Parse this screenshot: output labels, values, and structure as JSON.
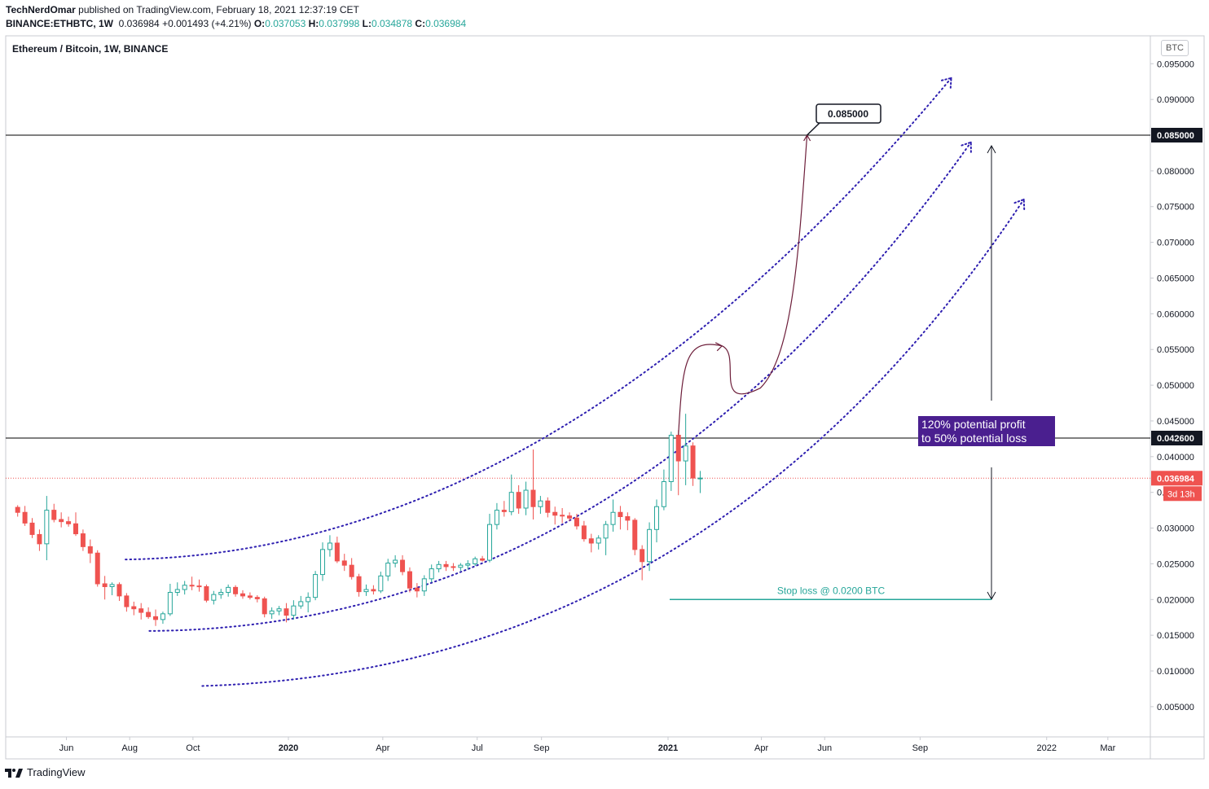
{
  "header": {
    "author": "TechNerdOmar",
    "published_text": "published on TradingView.com, February 18, 2021 12:37:19 CET",
    "symbol": "BINANCE:ETHBTC, 1W",
    "last": "0.036984",
    "change": "+0.001493 (+4.21%)",
    "o_label": "O:",
    "o": "0.037053",
    "h_label": "H:",
    "h": "0.037998",
    "l_label": "L:",
    "l": "0.034878",
    "c_label": "C:",
    "c": "0.036984"
  },
  "legend": {
    "title": "Ethereum / Bitcoin, 1W, BINANCE"
  },
  "currency_button": "BTC",
  "footer": {
    "brand": "TradingView"
  },
  "colors": {
    "up": "#26a69a",
    "down": "#ef5350",
    "channel": "#2e1fb0",
    "path": "#6d1e3a",
    "stop": "#26a69a",
    "annotation_bg": "#4a1f8f"
  },
  "chart_data": {
    "type": "candlestick",
    "title": "Ethereum / Bitcoin, 1W, BINANCE",
    "y_axis": {
      "ticks": [
        "0.095000",
        "0.090000",
        "0.085000",
        "0.080000",
        "0.075000",
        "0.070000",
        "0.065000",
        "0.060000",
        "0.055000",
        "0.050000",
        "0.045000",
        "0.040000",
        "0.035000",
        "0.030000",
        "0.025000",
        "0.020000",
        "0.015000",
        "0.010000",
        "0.005000"
      ],
      "ylim": [
        0.0,
        0.0985
      ],
      "currency": "BTC"
    },
    "x_axis": {
      "ticks": [
        {
          "label": "Jun",
          "date": "2019-06-01",
          "bold": false
        },
        {
          "label": "Aug",
          "date": "2019-08-01",
          "bold": false
        },
        {
          "label": "Oct",
          "date": "2019-10-01",
          "bold": false
        },
        {
          "label": "2020",
          "date": "2020-01-01",
          "bold": true
        },
        {
          "label": "Apr",
          "date": "2020-04-01",
          "bold": false
        },
        {
          "label": "Jul",
          "date": "2020-07-01",
          "bold": false
        },
        {
          "label": "Sep",
          "date": "2020-09-01",
          "bold": false
        },
        {
          "label": "2021",
          "date": "2021-01-01",
          "bold": true
        },
        {
          "label": "Apr",
          "date": "2021-04-01",
          "bold": false
        },
        {
          "label": "Jun",
          "date": "2021-06-01",
          "bold": false
        },
        {
          "label": "Sep",
          "date": "2021-09-01",
          "bold": false
        },
        {
          "label": "2022",
          "date": "2022-01-01",
          "bold": false
        },
        {
          "label": "Mar",
          "date": "2022-03-01",
          "bold": false
        }
      ]
    },
    "candles": [
      {
        "date": "2019-04-15",
        "o": 0.0329,
        "h": 0.0332,
        "l": 0.0316,
        "c": 0.0322
      },
      {
        "date": "2019-04-22",
        "o": 0.0322,
        "h": 0.0331,
        "l": 0.0303,
        "c": 0.0307
      },
      {
        "date": "2019-04-29",
        "o": 0.0307,
        "h": 0.0314,
        "l": 0.0286,
        "c": 0.0291
      },
      {
        "date": "2019-05-06",
        "o": 0.0291,
        "h": 0.0298,
        "l": 0.0268,
        "c": 0.0278
      },
      {
        "date": "2019-05-13",
        "o": 0.0278,
        "h": 0.0345,
        "l": 0.0255,
        "c": 0.0325
      },
      {
        "date": "2019-05-20",
        "o": 0.0325,
        "h": 0.0334,
        "l": 0.0308,
        "c": 0.0312
      },
      {
        "date": "2019-05-27",
        "o": 0.0312,
        "h": 0.0322,
        "l": 0.0301,
        "c": 0.0309
      },
      {
        "date": "2019-06-03",
        "o": 0.0309,
        "h": 0.0316,
        "l": 0.0302,
        "c": 0.0306
      },
      {
        "date": "2019-06-10",
        "o": 0.0306,
        "h": 0.0322,
        "l": 0.0289,
        "c": 0.0292
      },
      {
        "date": "2019-06-17",
        "o": 0.0292,
        "h": 0.0298,
        "l": 0.0268,
        "c": 0.0274
      },
      {
        "date": "2019-06-24",
        "o": 0.0274,
        "h": 0.0284,
        "l": 0.0251,
        "c": 0.0265
      },
      {
        "date": "2019-07-01",
        "o": 0.0265,
        "h": 0.0269,
        "l": 0.0218,
        "c": 0.0222
      },
      {
        "date": "2019-07-08",
        "o": 0.0222,
        "h": 0.0233,
        "l": 0.02,
        "c": 0.0218
      },
      {
        "date": "2019-07-15",
        "o": 0.0218,
        "h": 0.0224,
        "l": 0.0206,
        "c": 0.0221
      },
      {
        "date": "2019-07-22",
        "o": 0.0221,
        "h": 0.0224,
        "l": 0.0198,
        "c": 0.0205
      },
      {
        "date": "2019-07-29",
        "o": 0.0205,
        "h": 0.0209,
        "l": 0.0183,
        "c": 0.019
      },
      {
        "date": "2019-08-05",
        "o": 0.019,
        "h": 0.0197,
        "l": 0.0178,
        "c": 0.0187
      },
      {
        "date": "2019-08-12",
        "o": 0.0187,
        "h": 0.0195,
        "l": 0.0172,
        "c": 0.0182
      },
      {
        "date": "2019-08-19",
        "o": 0.0182,
        "h": 0.0189,
        "l": 0.0173,
        "c": 0.0176
      },
      {
        "date": "2019-08-26",
        "o": 0.0176,
        "h": 0.0186,
        "l": 0.0163,
        "c": 0.0172
      },
      {
        "date": "2019-09-02",
        "o": 0.0172,
        "h": 0.0183,
        "l": 0.0166,
        "c": 0.018
      },
      {
        "date": "2019-09-09",
        "o": 0.018,
        "h": 0.0222,
        "l": 0.0177,
        "c": 0.021
      },
      {
        "date": "2019-09-16",
        "o": 0.021,
        "h": 0.0224,
        "l": 0.0205,
        "c": 0.0214
      },
      {
        "date": "2019-09-23",
        "o": 0.0214,
        "h": 0.0226,
        "l": 0.0207,
        "c": 0.022
      },
      {
        "date": "2019-09-30",
        "o": 0.022,
        "h": 0.0232,
        "l": 0.0213,
        "c": 0.0219
      },
      {
        "date": "2019-10-07",
        "o": 0.0219,
        "h": 0.0228,
        "l": 0.0211,
        "c": 0.0218
      },
      {
        "date": "2019-10-14",
        "o": 0.0218,
        "h": 0.0221,
        "l": 0.0196,
        "c": 0.0199
      },
      {
        "date": "2019-10-21",
        "o": 0.0199,
        "h": 0.0212,
        "l": 0.0193,
        "c": 0.0207
      },
      {
        "date": "2019-10-28",
        "o": 0.0207,
        "h": 0.0215,
        "l": 0.0201,
        "c": 0.021
      },
      {
        "date": "2019-11-04",
        "o": 0.021,
        "h": 0.0221,
        "l": 0.0204,
        "c": 0.0217
      },
      {
        "date": "2019-11-11",
        "o": 0.0217,
        "h": 0.022,
        "l": 0.0204,
        "c": 0.0208
      },
      {
        "date": "2019-11-18",
        "o": 0.0208,
        "h": 0.0213,
        "l": 0.0201,
        "c": 0.0205
      },
      {
        "date": "2019-11-25",
        "o": 0.0205,
        "h": 0.021,
        "l": 0.02,
        "c": 0.0203
      },
      {
        "date": "2019-12-02",
        "o": 0.0203,
        "h": 0.0206,
        "l": 0.0196,
        "c": 0.0201
      },
      {
        "date": "2019-12-09",
        "o": 0.0201,
        "h": 0.0204,
        "l": 0.0175,
        "c": 0.018
      },
      {
        "date": "2019-12-16",
        "o": 0.018,
        "h": 0.0189,
        "l": 0.0173,
        "c": 0.0184
      },
      {
        "date": "2019-12-23",
        "o": 0.0184,
        "h": 0.0191,
        "l": 0.0178,
        "c": 0.0187
      },
      {
        "date": "2019-12-30",
        "o": 0.0187,
        "h": 0.0195,
        "l": 0.0168,
        "c": 0.0178
      },
      {
        "date": "2020-01-06",
        "o": 0.0178,
        "h": 0.0199,
        "l": 0.0172,
        "c": 0.0191
      },
      {
        "date": "2020-01-13",
        "o": 0.0191,
        "h": 0.0205,
        "l": 0.0187,
        "c": 0.0197
      },
      {
        "date": "2020-01-20",
        "o": 0.0197,
        "h": 0.021,
        "l": 0.0182,
        "c": 0.0203
      },
      {
        "date": "2020-01-27",
        "o": 0.0203,
        "h": 0.024,
        "l": 0.0199,
        "c": 0.0235
      },
      {
        "date": "2020-02-03",
        "o": 0.0235,
        "h": 0.028,
        "l": 0.0226,
        "c": 0.027
      },
      {
        "date": "2020-02-10",
        "o": 0.027,
        "h": 0.029,
        "l": 0.026,
        "c": 0.0279
      },
      {
        "date": "2020-02-17",
        "o": 0.0279,
        "h": 0.0288,
        "l": 0.0251,
        "c": 0.0254
      },
      {
        "date": "2020-02-24",
        "o": 0.0254,
        "h": 0.0264,
        "l": 0.024,
        "c": 0.0248
      },
      {
        "date": "2020-03-02",
        "o": 0.0248,
        "h": 0.0258,
        "l": 0.0228,
        "c": 0.0232
      },
      {
        "date": "2020-03-09",
        "o": 0.0232,
        "h": 0.0236,
        "l": 0.0204,
        "c": 0.0211
      },
      {
        "date": "2020-03-16",
        "o": 0.0211,
        "h": 0.0221,
        "l": 0.0205,
        "c": 0.0214
      },
      {
        "date": "2020-03-23",
        "o": 0.0214,
        "h": 0.022,
        "l": 0.0207,
        "c": 0.0212
      },
      {
        "date": "2020-03-30",
        "o": 0.0212,
        "h": 0.0239,
        "l": 0.0209,
        "c": 0.0233
      },
      {
        "date": "2020-04-06",
        "o": 0.0233,
        "h": 0.0257,
        "l": 0.0226,
        "c": 0.0251
      },
      {
        "date": "2020-04-13",
        "o": 0.0251,
        "h": 0.0262,
        "l": 0.0245,
        "c": 0.0255
      },
      {
        "date": "2020-04-20",
        "o": 0.0255,
        "h": 0.0262,
        "l": 0.0234,
        "c": 0.0239
      },
      {
        "date": "2020-04-27",
        "o": 0.0239,
        "h": 0.0245,
        "l": 0.021,
        "c": 0.0216
      },
      {
        "date": "2020-05-04",
        "o": 0.0216,
        "h": 0.0223,
        "l": 0.0203,
        "c": 0.0212
      },
      {
        "date": "2020-05-11",
        "o": 0.0212,
        "h": 0.0234,
        "l": 0.0205,
        "c": 0.0229
      },
      {
        "date": "2020-05-18",
        "o": 0.0229,
        "h": 0.0249,
        "l": 0.0224,
        "c": 0.0243
      },
      {
        "date": "2020-05-25",
        "o": 0.0243,
        "h": 0.0254,
        "l": 0.0238,
        "c": 0.0249
      },
      {
        "date": "2020-06-01",
        "o": 0.0249,
        "h": 0.0254,
        "l": 0.024,
        "c": 0.0246
      },
      {
        "date": "2020-06-08",
        "o": 0.0246,
        "h": 0.0251,
        "l": 0.024,
        "c": 0.0245
      },
      {
        "date": "2020-06-15",
        "o": 0.0245,
        "h": 0.0251,
        "l": 0.024,
        "c": 0.0248
      },
      {
        "date": "2020-06-22",
        "o": 0.0248,
        "h": 0.0255,
        "l": 0.0242,
        "c": 0.025
      },
      {
        "date": "2020-06-29",
        "o": 0.025,
        "h": 0.026,
        "l": 0.0247,
        "c": 0.0257
      },
      {
        "date": "2020-07-06",
        "o": 0.0257,
        "h": 0.0261,
        "l": 0.0253,
        "c": 0.0255
      },
      {
        "date": "2020-07-13",
        "o": 0.0255,
        "h": 0.032,
        "l": 0.0252,
        "c": 0.0305
      },
      {
        "date": "2020-07-20",
        "o": 0.0305,
        "h": 0.0335,
        "l": 0.0298,
        "c": 0.0325
      },
      {
        "date": "2020-07-27",
        "o": 0.0325,
        "h": 0.0338,
        "l": 0.0316,
        "c": 0.0323
      },
      {
        "date": "2020-08-03",
        "o": 0.0323,
        "h": 0.0375,
        "l": 0.0318,
        "c": 0.035
      },
      {
        "date": "2020-08-10",
        "o": 0.035,
        "h": 0.036,
        "l": 0.032,
        "c": 0.0328
      },
      {
        "date": "2020-08-17",
        "o": 0.0328,
        "h": 0.0365,
        "l": 0.0318,
        "c": 0.0353
      },
      {
        "date": "2020-08-24",
        "o": 0.0353,
        "h": 0.041,
        "l": 0.0312,
        "c": 0.033
      },
      {
        "date": "2020-08-31",
        "o": 0.033,
        "h": 0.0345,
        "l": 0.032,
        "c": 0.0338
      },
      {
        "date": "2020-09-07",
        "o": 0.0338,
        "h": 0.0343,
        "l": 0.0315,
        "c": 0.0322
      },
      {
        "date": "2020-09-14",
        "o": 0.0322,
        "h": 0.033,
        "l": 0.0305,
        "c": 0.0318
      },
      {
        "date": "2020-09-21",
        "o": 0.0318,
        "h": 0.0328,
        "l": 0.0307,
        "c": 0.0317
      },
      {
        "date": "2020-09-28",
        "o": 0.0317,
        "h": 0.0322,
        "l": 0.031,
        "c": 0.0314
      },
      {
        "date": "2020-10-05",
        "o": 0.0314,
        "h": 0.032,
        "l": 0.0298,
        "c": 0.0303
      },
      {
        "date": "2020-10-12",
        "o": 0.0303,
        "h": 0.031,
        "l": 0.0281,
        "c": 0.0285
      },
      {
        "date": "2020-10-19",
        "o": 0.0285,
        "h": 0.0292,
        "l": 0.0266,
        "c": 0.0279
      },
      {
        "date": "2020-10-26",
        "o": 0.0279,
        "h": 0.029,
        "l": 0.027,
        "c": 0.0286
      },
      {
        "date": "2020-11-02",
        "o": 0.0286,
        "h": 0.031,
        "l": 0.0262,
        "c": 0.0305
      },
      {
        "date": "2020-11-09",
        "o": 0.0305,
        "h": 0.034,
        "l": 0.0295,
        "c": 0.0322
      },
      {
        "date": "2020-11-16",
        "o": 0.0322,
        "h": 0.0331,
        "l": 0.0298,
        "c": 0.0316
      },
      {
        "date": "2020-11-23",
        "o": 0.0316,
        "h": 0.0322,
        "l": 0.0297,
        "c": 0.0311
      },
      {
        "date": "2020-11-30",
        "o": 0.0311,
        "h": 0.0314,
        "l": 0.0262,
        "c": 0.027
      },
      {
        "date": "2020-12-07",
        "o": 0.027,
        "h": 0.0276,
        "l": 0.0227,
        "c": 0.0253
      },
      {
        "date": "2020-12-14",
        "o": 0.0253,
        "h": 0.0308,
        "l": 0.024,
        "c": 0.0298
      },
      {
        "date": "2020-12-21",
        "o": 0.0298,
        "h": 0.034,
        "l": 0.028,
        "c": 0.033
      },
      {
        "date": "2020-12-28",
        "o": 0.033,
        "h": 0.0382,
        "l": 0.0325,
        "c": 0.0365
      },
      {
        "date": "2021-01-04",
        "o": 0.0365,
        "h": 0.0435,
        "l": 0.0352,
        "c": 0.043
      },
      {
        "date": "2021-01-11",
        "o": 0.043,
        "h": 0.0437,
        "l": 0.0346,
        "c": 0.0394
      },
      {
        "date": "2021-01-18",
        "o": 0.0394,
        "h": 0.046,
        "l": 0.036,
        "c": 0.0415
      },
      {
        "date": "2021-01-25",
        "o": 0.0415,
        "h": 0.042,
        "l": 0.0359,
        "c": 0.037
      },
      {
        "date": "2021-02-01",
        "o": 0.037,
        "h": 0.038,
        "l": 0.0349,
        "c": 0.037
      }
    ],
    "horizontal_lines": [
      {
        "value": 0.085,
        "label": "0.085000",
        "color": "#000000"
      },
      {
        "value": 0.0426,
        "label": "0.042600",
        "color": "#000000"
      },
      {
        "value": 0.036984,
        "label": "0.036984",
        "color": "#ef5350",
        "dotted": true
      }
    ],
    "countdown_label": "3d 13h",
    "annotations": {
      "target_callout": "0.085000",
      "profit_loss": [
        "120% potential profit",
        "to 50% potential loss"
      ],
      "stop_loss": "Stop loss @ 0.0200 BTC"
    }
  }
}
